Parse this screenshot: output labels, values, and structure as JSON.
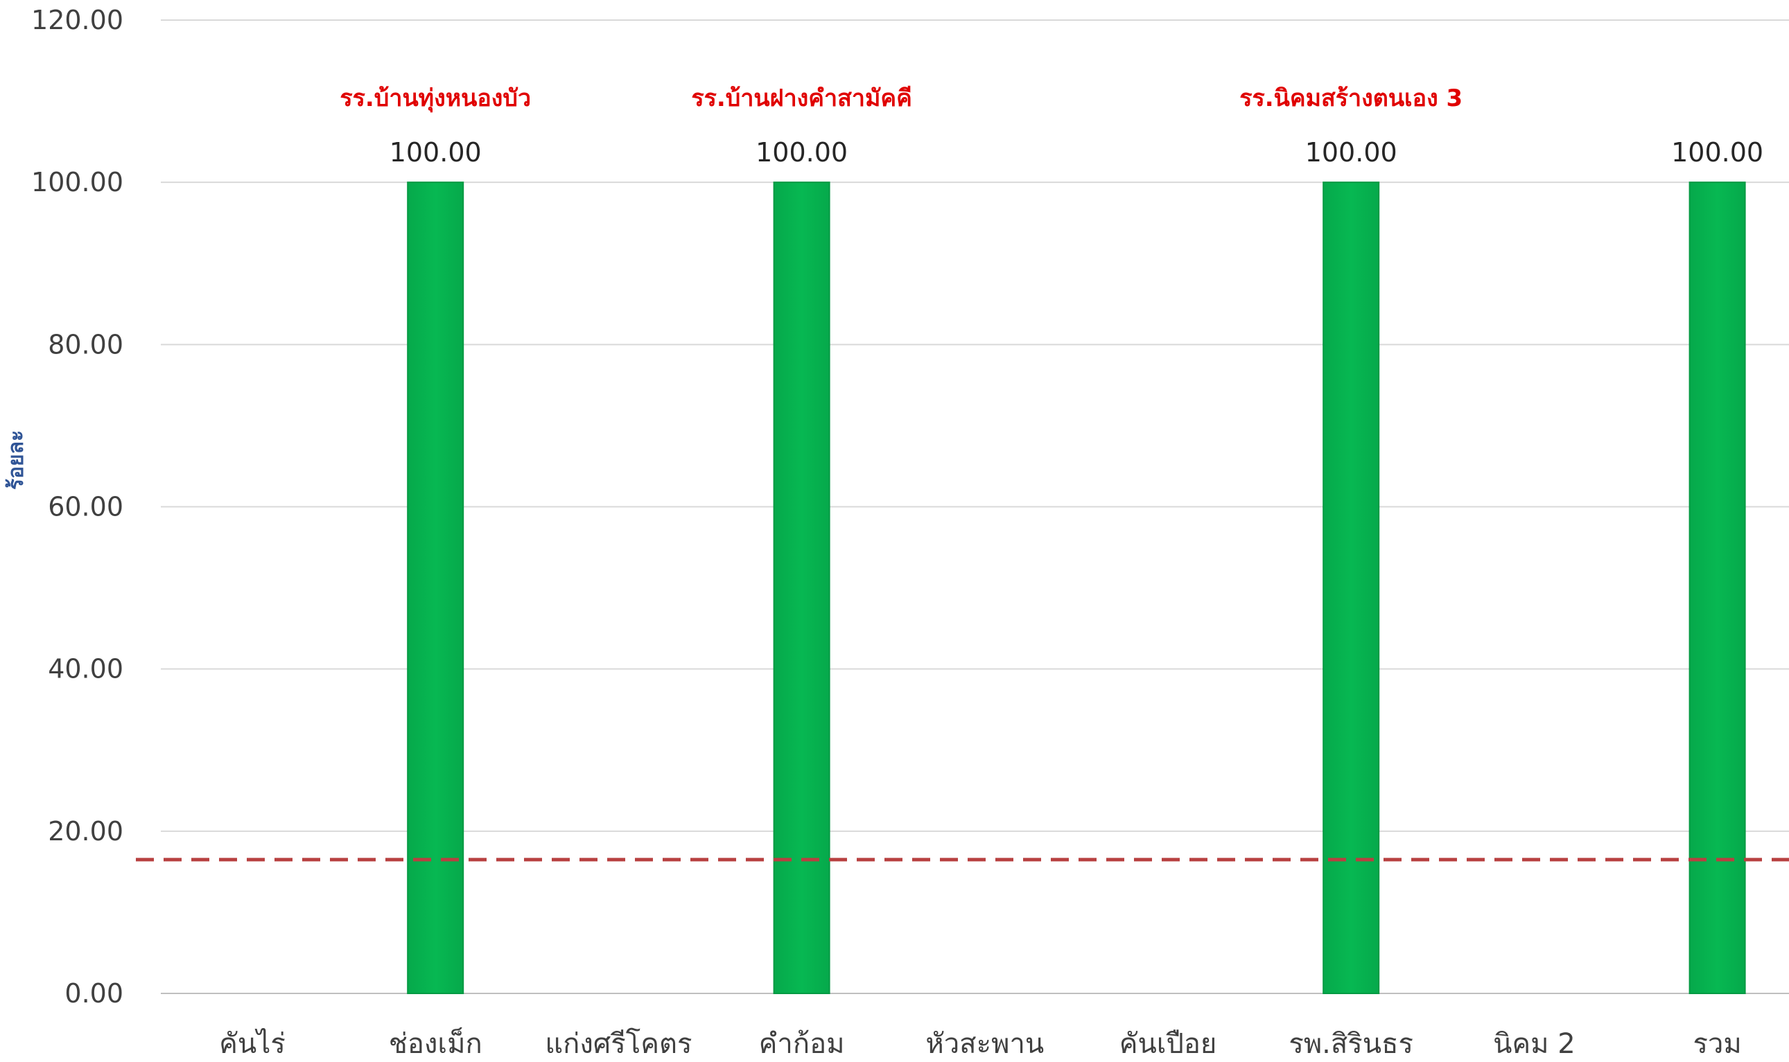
{
  "chart_data": {
    "type": "bar",
    "title": "",
    "ylabel": "ร้อยละ",
    "xlabel": "",
    "ylim": [
      0,
      120
    ],
    "yticks": [
      "0.00",
      "20.00",
      "40.00",
      "60.00",
      "80.00",
      "100.00",
      "120.00"
    ],
    "categories": [
      "คันไร่",
      "ช่องเม็ก",
      "แก่งศรีโคตร",
      "คำก้อม",
      "หัวสะพาน",
      "คันเปือย",
      "รพ.สิรินธร",
      "นิคม 2",
      "รวม"
    ],
    "values": [
      0,
      100,
      0,
      100,
      0,
      0,
      100,
      0,
      100
    ],
    "data_labels": [
      "",
      "100.00",
      "",
      "100.00",
      "",
      "",
      "100.00",
      "",
      "100.00"
    ],
    "annotations": [
      {
        "category": "ช่องเม็ก",
        "text": "รร.บ้านทุ่งหนองบัว"
      },
      {
        "category": "คำก้อม",
        "text": "รร.บ้านฝางคำสามัคคี"
      },
      {
        "category": "รพ.สิรินธร",
        "text": "รร.นิคมสร้างตนเอง 3"
      }
    ],
    "reference_line": {
      "value": 16.5,
      "style": "dashed"
    },
    "grid": true,
    "colors": {
      "bar": "#07b852",
      "bar_edge": "#059a43",
      "reference_line": "#b84040",
      "grid": "#d9d9d9",
      "annotation": "#e00000",
      "ylabel": "#2f5496"
    }
  }
}
